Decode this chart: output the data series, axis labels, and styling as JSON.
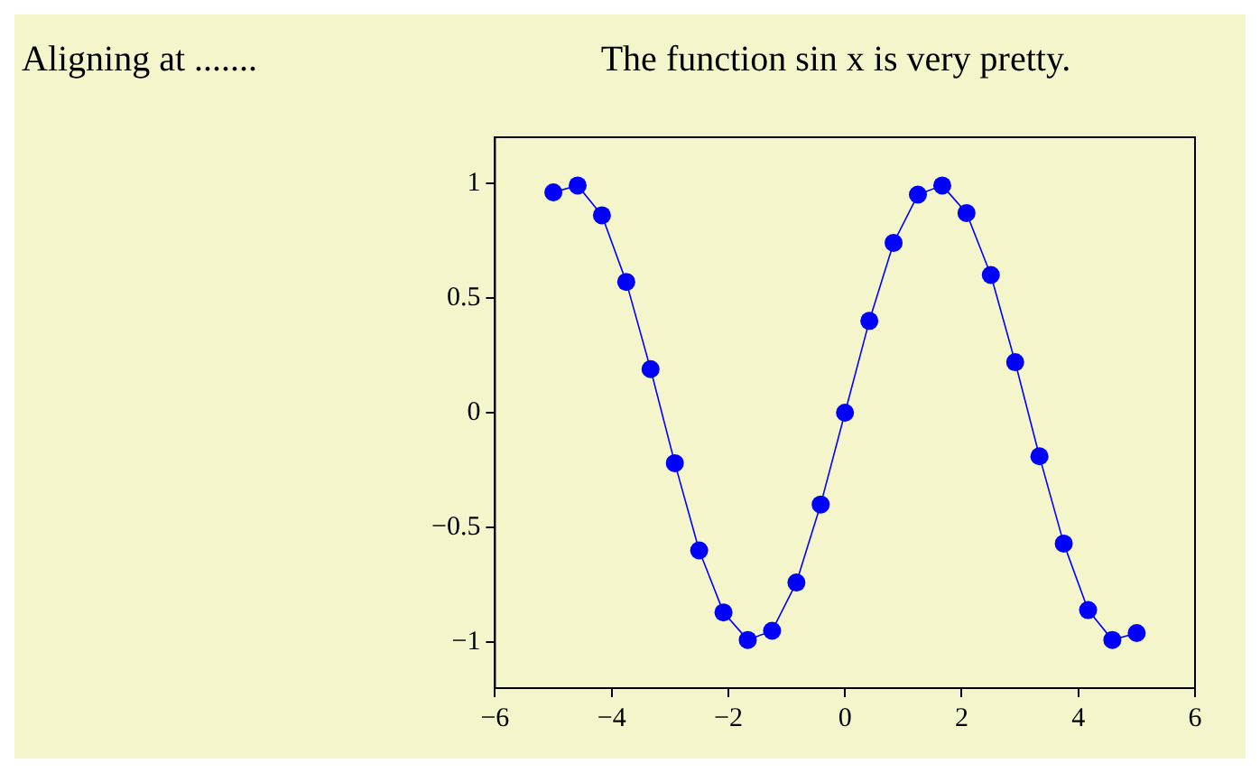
{
  "chart_data": {
    "type": "line",
    "title": "The function sin x is very pretty.",
    "annotations": [
      "Aligning at ......."
    ],
    "x": [
      -5,
      -4.583,
      -4.167,
      -3.75,
      -3.333,
      -2.917,
      -2.5,
      -2.083,
      -1.667,
      -1.25,
      -0.833,
      -0.417,
      0,
      0.417,
      0.833,
      1.25,
      1.667,
      2.083,
      2.5,
      2.917,
      3.333,
      3.75,
      4.167,
      4.583,
      5
    ],
    "series": [
      {
        "color": "#0000ff",
        "values": [
          0.96,
          0.99,
          0.86,
          0.57,
          0.19,
          -0.22,
          -0.6,
          -0.87,
          -0.99,
          -0.95,
          -0.74,
          -0.4,
          0,
          0.4,
          0.74,
          0.95,
          0.99,
          0.87,
          0.6,
          0.22,
          -0.19,
          -0.57,
          -0.86,
          -0.99,
          -0.96
        ]
      }
    ],
    "xlim": [
      -6,
      6
    ],
    "ylim": [
      -1.2,
      1.2
    ],
    "xticks": [
      {
        "value": -6,
        "label": "−6"
      },
      {
        "value": -4,
        "label": "−4"
      },
      {
        "value": -2,
        "label": "−2"
      },
      0,
      2,
      4,
      6
    ],
    "yticks": [
      {
        "value": -1,
        "label": "−1"
      },
      {
        "value": -0.5,
        "label": "−0.5"
      },
      0,
      0.5,
      1
    ],
    "grid": false,
    "marker": "circle",
    "line_style": "solid"
  }
}
